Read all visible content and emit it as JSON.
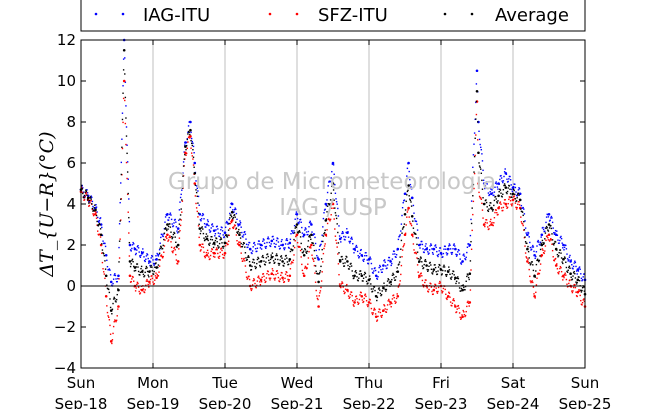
{
  "chart_data": {
    "type": "scatter",
    "title": "",
    "xlabel": "",
    "ylabel": "ΔT_{U−R}(°C)",
    "ylim": [
      -4,
      12
    ],
    "yticks": [
      -4,
      -2,
      0,
      2,
      4,
      6,
      8,
      10,
      12
    ],
    "xlim": [
      0,
      7
    ],
    "x_unit": "days since Sun Sep-18",
    "xtick_values": [
      0,
      1,
      2,
      3,
      4,
      5,
      6,
      7
    ],
    "xtick_labels": [
      [
        "Sun",
        "Sep-18"
      ],
      [
        "Mon",
        "Sep-19"
      ],
      [
        "Tue",
        "Sep-20"
      ],
      [
        "Wed",
        "Sep-21"
      ],
      [
        "Thu",
        "Sep-22"
      ],
      [
        "Fri",
        "Sep-23"
      ],
      [
        "Sat",
        "Sep-24"
      ],
      [
        "Sun",
        "Sep-25"
      ]
    ],
    "grid": "vertical",
    "legend_position": "top",
    "watermark": [
      "Grupo de Micrometeorologia",
      "IAG / USP"
    ],
    "series": [
      {
        "name": "IAG-ITU",
        "color": "#0000ff",
        "x": [
          0,
          0.1,
          0.2,
          0.28,
          0.35,
          0.42,
          0.52,
          0.6,
          0.68,
          0.75,
          0.85,
          0.95,
          1.05,
          1.2,
          1.35,
          1.45,
          1.52,
          1.58,
          1.65,
          1.75,
          1.85,
          2.0,
          2.1,
          2.2,
          2.35,
          2.5,
          2.65,
          2.8,
          2.9,
          3.0,
          3.1,
          3.2,
          3.3,
          3.4,
          3.5,
          3.6,
          3.7,
          3.8,
          3.9,
          4.0,
          4.1,
          4.2,
          4.3,
          4.4,
          4.5,
          4.55,
          4.6,
          4.7,
          4.8,
          4.9,
          5.0,
          5.1,
          5.2,
          5.3,
          5.4,
          5.5,
          5.52,
          5.6,
          5.7,
          5.8,
          5.9,
          6.0,
          6.1,
          6.2,
          6.3,
          6.4,
          6.5,
          6.6,
          6.7,
          6.8,
          6.9,
          7.0
        ],
        "y": [
          4.7,
          4.4,
          3.8,
          3.0,
          1.5,
          0.2,
          0.5,
          12.0,
          2.0,
          1.8,
          1.6,
          1.2,
          1.3,
          3.5,
          2.8,
          7.0,
          8.0,
          6.0,
          3.5,
          3.0,
          2.7,
          2.6,
          4.0,
          3.0,
          1.8,
          2.0,
          2.2,
          2.0,
          2.1,
          3.5,
          2.5,
          3.0,
          1.3,
          4.0,
          6.0,
          2.3,
          2.6,
          1.8,
          1.5,
          1.3,
          0.5,
          1.0,
          1.2,
          1.8,
          4.5,
          6.0,
          4.3,
          2.0,
          1.8,
          1.8,
          1.6,
          1.8,
          1.8,
          1.2,
          2.0,
          10.5,
          8.0,
          5.0,
          4.5,
          5.0,
          5.5,
          4.8,
          4.5,
          2.5,
          1.5,
          2.5,
          3.5,
          2.5,
          2.0,
          1.2,
          0.8,
          0.3
        ]
      },
      {
        "name": "SFZ-ITU",
        "color": "#ff0000",
        "x": [
          0,
          0.1,
          0.2,
          0.28,
          0.35,
          0.42,
          0.52,
          0.6,
          0.68,
          0.75,
          0.85,
          0.95,
          1.05,
          1.2,
          1.35,
          1.45,
          1.52,
          1.58,
          1.65,
          1.75,
          1.85,
          2.0,
          2.1,
          2.2,
          2.35,
          2.5,
          2.65,
          2.8,
          2.9,
          3.0,
          3.1,
          3.2,
          3.3,
          3.4,
          3.5,
          3.6,
          3.7,
          3.8,
          3.9,
          4.0,
          4.1,
          4.2,
          4.3,
          4.4,
          4.5,
          4.55,
          4.6,
          4.7,
          4.8,
          4.9,
          5.0,
          5.1,
          5.2,
          5.3,
          5.4,
          5.5,
          5.52,
          5.6,
          5.7,
          5.8,
          5.9,
          6.0,
          6.1,
          6.2,
          6.3,
          6.4,
          6.5,
          6.6,
          6.7,
          6.8,
          6.9,
          7.0
        ],
        "y": [
          4.6,
          4.2,
          3.5,
          2.0,
          -0.5,
          -2.7,
          -1.0,
          10.0,
          0.5,
          0.0,
          -0.2,
          0.2,
          0.4,
          2.5,
          1.2,
          6.5,
          7.3,
          5.0,
          2.0,
          1.5,
          1.6,
          1.6,
          3.2,
          2.0,
          0.0,
          0.3,
          0.6,
          0.4,
          0.5,
          2.5,
          0.5,
          2.0,
          -1.0,
          2.5,
          4.0,
          0.0,
          -0.2,
          -0.8,
          -0.5,
          -0.8,
          -1.5,
          -1.2,
          -0.8,
          -0.5,
          2.5,
          3.8,
          2.5,
          0.5,
          0.0,
          -0.2,
          0.0,
          -0.5,
          -1.0,
          -1.5,
          -0.8,
          9.0,
          5.0,
          3.0,
          3.0,
          3.8,
          4.0,
          4.2,
          3.8,
          1.2,
          -0.5,
          1.5,
          2.5,
          1.0,
          0.5,
          0.0,
          -0.3,
          -1.0
        ]
      },
      {
        "name": "Average",
        "color": "#000000",
        "x": [
          0,
          0.1,
          0.2,
          0.28,
          0.35,
          0.42,
          0.52,
          0.6,
          0.68,
          0.75,
          0.85,
          0.95,
          1.05,
          1.2,
          1.35,
          1.45,
          1.52,
          1.58,
          1.65,
          1.75,
          1.85,
          2.0,
          2.1,
          2.2,
          2.35,
          2.5,
          2.65,
          2.8,
          2.9,
          3.0,
          3.1,
          3.2,
          3.3,
          3.4,
          3.5,
          3.6,
          3.7,
          3.8,
          3.9,
          4.0,
          4.1,
          4.2,
          4.3,
          4.4,
          4.5,
          4.55,
          4.6,
          4.7,
          4.8,
          4.9,
          5.0,
          5.1,
          5.2,
          5.3,
          5.4,
          5.5,
          5.52,
          5.6,
          5.7,
          5.8,
          5.9,
          6.0,
          6.1,
          6.2,
          6.3,
          6.4,
          6.5,
          6.6,
          6.7,
          6.8,
          6.9,
          7.0
        ],
        "y": [
          4.7,
          4.3,
          3.7,
          2.5,
          0.5,
          -1.2,
          -0.2,
          11.5,
          1.2,
          0.9,
          0.7,
          0.7,
          0.9,
          3.0,
          2.0,
          6.8,
          7.6,
          5.5,
          2.8,
          2.3,
          2.1,
          2.1,
          3.6,
          2.5,
          1.0,
          1.2,
          1.4,
          1.2,
          1.3,
          3.0,
          1.5,
          2.5,
          0.2,
          3.2,
          5.0,
          1.2,
          1.2,
          0.5,
          0.5,
          0.3,
          -0.5,
          -0.1,
          0.2,
          0.7,
          3.5,
          4.9,
          3.4,
          1.2,
          1.0,
          0.8,
          0.8,
          0.7,
          0.4,
          -0.2,
          0.6,
          9.5,
          6.5,
          4.0,
          3.8,
          4.4,
          4.8,
          4.5,
          4.2,
          1.8,
          0.5,
          2.0,
          3.0,
          1.8,
          1.3,
          0.6,
          0.3,
          -0.4
        ]
      }
    ]
  }
}
